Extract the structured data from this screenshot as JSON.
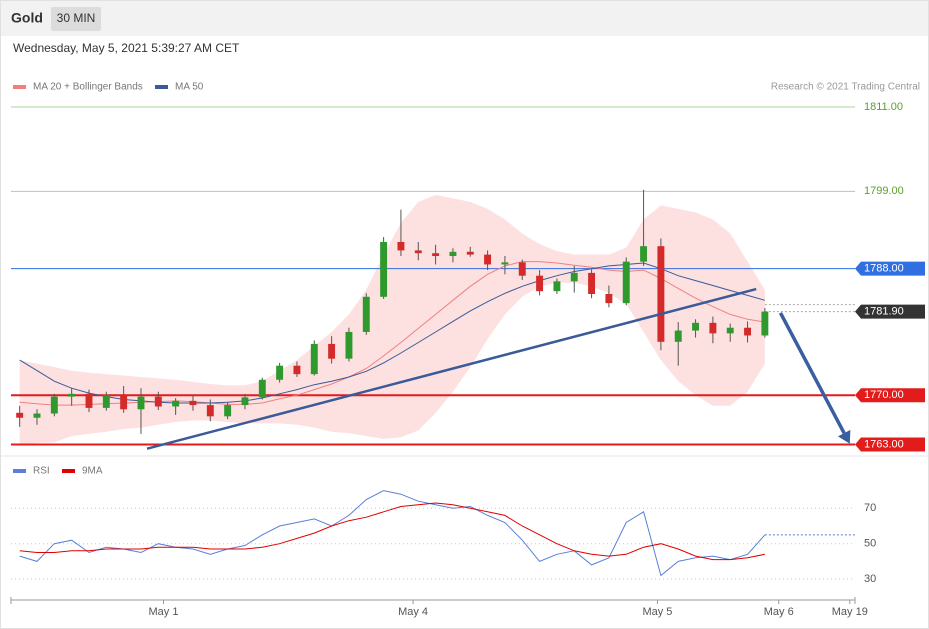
{
  "header": {
    "title": "Gold",
    "interval": "30 MIN",
    "timestamp": "Wednesday, May 5, 2021 5:39:27 AM CET",
    "credit": "Research © 2021 Trading Central"
  },
  "chart_data": [
    {
      "type": "candlestick",
      "up_color": "#2e9a2e",
      "down_color": "#d42a2a",
      "open": [
        1767.5,
        1766.8,
        1767.4,
        1769.8,
        1770.2,
        1768.2,
        1770,
        1768,
        1769.8,
        1768.4,
        1769.2,
        1768.6,
        1767,
        1768.6,
        1769.7,
        1772.2,
        1774.2,
        1773,
        1777.3,
        1775.2,
        1779,
        1784,
        1791.8,
        1790.6,
        1790.2,
        1789.8,
        1790.4,
        1790,
        1788.6,
        1788.9,
        1787,
        1784.8,
        1786.2,
        1787.4,
        1784.4,
        1783.1,
        1789,
        1791.2,
        1777.6,
        1779.2,
        1780.3,
        1778.8,
        1779.6,
        1778.5
      ],
      "high": [
        1768.5,
        1768,
        1770.2,
        1771,
        1770.8,
        1770.5,
        1771.3,
        1771,
        1770.5,
        1769.6,
        1769.9,
        1769.4,
        1769,
        1770.2,
        1772.5,
        1774.6,
        1774.8,
        1777.8,
        1778.4,
        1779.6,
        1784.5,
        1792.5,
        1796.4,
        1791.8,
        1791.4,
        1790.9,
        1791.1,
        1790.6,
        1789.8,
        1789.3,
        1787.8,
        1786.6,
        1788.4,
        1787.9,
        1785.6,
        1789.6,
        1799.2,
        1792.3,
        1780.4,
        1780.8,
        1781.2,
        1780.2,
        1780.5,
        1782.4
      ],
      "low": [
        1765.5,
        1765.8,
        1767,
        1768.5,
        1767.6,
        1767.8,
        1767.5,
        1764.5,
        1767.9,
        1767.2,
        1767.8,
        1766.3,
        1766.6,
        1768,
        1769.4,
        1771.8,
        1772.6,
        1772.8,
        1774.5,
        1774.8,
        1778.6,
        1783.7,
        1789.8,
        1789.2,
        1788.6,
        1788.9,
        1789.7,
        1787.8,
        1787.2,
        1786.4,
        1784.2,
        1784.4,
        1784.6,
        1783.8,
        1782.5,
        1782.8,
        1788.4,
        1776.4,
        1774.2,
        1778.2,
        1777.4,
        1777.6,
        1777.5,
        1778.2
      ],
      "close": [
        1766.8,
        1767.4,
        1769.8,
        1770.2,
        1768.2,
        1770,
        1768,
        1769.8,
        1768.4,
        1769.2,
        1768.6,
        1767,
        1768.6,
        1769.7,
        1772.2,
        1774.2,
        1773,
        1777.3,
        1775.2,
        1779,
        1784,
        1791.8,
        1790.6,
        1790.2,
        1789.8,
        1790.4,
        1790,
        1788.6,
        1788.9,
        1787,
        1784.8,
        1786.2,
        1787.4,
        1784.4,
        1783.1,
        1789,
        1791.2,
        1777.6,
        1779.2,
        1780.3,
        1778.8,
        1779.6,
        1778.5,
        1781.9
      ],
      "xlim": [
        -0.5,
        48.2
      ],
      "ylim": [
        1761.5,
        1812.7
      ],
      "series": [
        {
          "name": "MA 20 + Bollinger Bands",
          "color": "#f08080",
          "band_color": "#fde0e0",
          "values": [
            1769,
            1768.8,
            1768.6,
            1768.6,
            1768.7,
            1768.8,
            1768.9,
            1769,
            1769.1,
            1769.2,
            1769.1,
            1768.9,
            1768.7,
            1768.7,
            1768.9,
            1769.5,
            1770,
            1770.8,
            1771.6,
            1772.6,
            1773.8,
            1775.6,
            1777.5,
            1779.5,
            1781.5,
            1783.5,
            1785.5,
            1787.2,
            1788.4,
            1789,
            1789,
            1788.8,
            1788.5,
            1788.2,
            1787.8,
            1787.6,
            1787.8,
            1786.6,
            1785.2,
            1783.8,
            1782.6,
            1781.5,
            1780.8,
            1780.4
          ],
          "upper": [
            1775,
            1774.5,
            1774,
            1773.5,
            1773.2,
            1773,
            1772.8,
            1772.6,
            1772.4,
            1772.2,
            1771.9,
            1771.6,
            1771.4,
            1771.4,
            1772,
            1773.5,
            1775,
            1777,
            1779,
            1781.5,
            1785,
            1790,
            1794.5,
            1797.5,
            1798.5,
            1798,
            1797.5,
            1796.5,
            1795,
            1793,
            1791.5,
            1790.5,
            1790,
            1790,
            1790,
            1791,
            1795,
            1797,
            1796.5,
            1796,
            1795,
            1793,
            1789,
            1785
          ],
          "lower": [
            1763,
            1763.2,
            1763.3,
            1764.2,
            1764.5,
            1764.8,
            1765.2,
            1765.4,
            1765.8,
            1766.2,
            1766.4,
            1766.4,
            1766.2,
            1766,
            1766,
            1766,
            1765.8,
            1765.4,
            1764.8,
            1764.6,
            1764.2,
            1763.8,
            1764,
            1765,
            1767.5,
            1770.5,
            1774,
            1778,
            1781.5,
            1784,
            1785.5,
            1786,
            1786,
            1785.5,
            1784.5,
            1783,
            1779,
            1775,
            1772,
            1770,
            1768.5,
            1768.5,
            1770.5,
            1774.5
          ]
        },
        {
          "name": "MA 50",
          "color": "#3a5a98",
          "values": [
            1775,
            1773.5,
            1772,
            1771,
            1770.3,
            1769.8,
            1769.4,
            1769.2,
            1769,
            1768.9,
            1768.9,
            1768.9,
            1769,
            1769.2,
            1769.6,
            1770.2,
            1770.8,
            1771.5,
            1772,
            1772.6,
            1773.4,
            1774.6,
            1776,
            1777.5,
            1779,
            1780.5,
            1782,
            1783.3,
            1784.5,
            1785.5,
            1786.3,
            1787,
            1787.6,
            1788,
            1788.4,
            1788.6,
            1788.8,
            1788,
            1787,
            1786.3,
            1785.6,
            1784.9,
            1784.2,
            1783.5
          ]
        }
      ],
      "levels": [
        {
          "value": 1811,
          "label": "1811.00",
          "color": "#5aa02c",
          "line_color": "#a8d49a",
          "style": "text"
        },
        {
          "value": 1799,
          "label": "1799.00",
          "color": "#5aa02c",
          "line_color": "#a8d49a",
          "style": "text"
        },
        {
          "value": 1788,
          "label": "1788.00",
          "color": "#2f6fe0",
          "line_color": "#2f6fe0",
          "style": "tag"
        },
        {
          "value": 1781.9,
          "label": "1781.90",
          "color": "#333333",
          "line_color": "#aaaaaa",
          "style": "dotted-tag"
        },
        {
          "value": 1770,
          "label": "1770.00",
          "color": "#e21b1b",
          "line_color": "#e21b1b",
          "style": "bold-tag"
        },
        {
          "value": 1763,
          "label": "1763.00",
          "color": "#e21b1b",
          "line_color": "#e21b1b",
          "style": "bold-tag"
        }
      ],
      "trendline": {
        "color": "#3a5a98",
        "x": [
          7.35,
          42.5
        ],
        "y": [
          1762.4,
          1785.1
        ]
      },
      "arrow": {
        "color": "#3a5ea0",
        "x": [
          43.9,
          47.9
        ],
        "y": [
          1781.7,
          1763.1
        ]
      }
    },
    {
      "type": "line",
      "xlim": [
        -0.5,
        48.2
      ],
      "ylim": [
        21,
        86
      ],
      "yticks": [
        70,
        50,
        30
      ],
      "xticks": [
        {
          "value": 8.3,
          "label": "May 1"
        },
        {
          "value": 22.7,
          "label": "May 4"
        },
        {
          "value": 36.8,
          "label": "May 5"
        },
        {
          "value": 43.8,
          "label": "May 6"
        },
        {
          "value": 47.9,
          "label": "May 19"
        }
      ],
      "series": [
        {
          "name": "RSI",
          "color": "#5b7fd6",
          "values": [
            43,
            40,
            50,
            52,
            45,
            48,
            47,
            45,
            50,
            48,
            47,
            44,
            47,
            49,
            55,
            60,
            62,
            64,
            60,
            66,
            75,
            80,
            78,
            74,
            72,
            70,
            71,
            66,
            62,
            52,
            40,
            44,
            46,
            38,
            42,
            62,
            68,
            32,
            40,
            42,
            43,
            41,
            44,
            55
          ]
        },
        {
          "name": "9MA",
          "color": "#e00000",
          "values": [
            46,
            45,
            45,
            46,
            46,
            47,
            47,
            47,
            48,
            48,
            48,
            47,
            47,
            47,
            48,
            50,
            53,
            56,
            60,
            63,
            65,
            68,
            71,
            72,
            73,
            72,
            70,
            68,
            66,
            60,
            55,
            50,
            46,
            44,
            43,
            44,
            48,
            50,
            47,
            43,
            41,
            41,
            42,
            44
          ]
        }
      ]
    }
  ]
}
